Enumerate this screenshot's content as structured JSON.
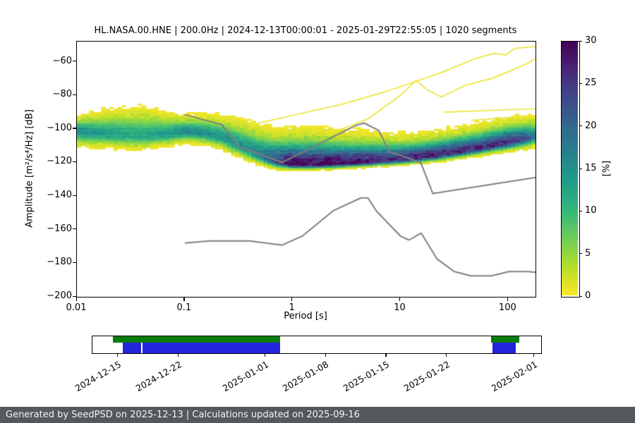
{
  "chart_data": {
    "type": "heatmap",
    "title": "HL.NASA.00.HNE | 200.0Hz | 2024-12-13T00:00:01 - 2025-01-29T22:55:05 | 1020 segments",
    "xlabel": "Period [s]",
    "ylabel": "Amplitude [m²/s⁴/Hz] [dB]",
    "x_scale": "log",
    "xlim": [
      0.01,
      179
    ],
    "ylim": [
      -200,
      -48
    ],
    "grid": false,
    "xticks": [
      {
        "value": 0.01,
        "label": "0.01"
      },
      {
        "value": 0.1,
        "label": "0.1"
      },
      {
        "value": 1,
        "label": "1"
      },
      {
        "value": 10,
        "label": "10"
      },
      {
        "value": 100,
        "label": "100"
      }
    ],
    "yticks": [
      {
        "value": -60,
        "label": "−60"
      },
      {
        "value": -80,
        "label": "−80"
      },
      {
        "value": -100,
        "label": "−100"
      },
      {
        "value": -120,
        "label": "−120"
      },
      {
        "value": -140,
        "label": "−140"
      },
      {
        "value": -160,
        "label": "−160"
      },
      {
        "value": -180,
        "label": "−180"
      },
      {
        "value": -200,
        "label": "−200"
      }
    ],
    "colorbar": {
      "label": "[%]",
      "min": 0,
      "max": 30,
      "ticks": [
        {
          "value": 0,
          "label": "0"
        },
        {
          "value": 5,
          "label": "5"
        },
        {
          "value": 10,
          "label": "10"
        },
        {
          "value": 15,
          "label": "15"
        },
        {
          "value": 20,
          "label": "20"
        },
        {
          "value": 25,
          "label": "25"
        },
        {
          "value": 30,
          "label": "30"
        }
      ],
      "colormap": "viridis_r",
      "viridis_stops": [
        "#440154",
        "#482878",
        "#3e4a89",
        "#31688e",
        "#26828e",
        "#1f9e89",
        "#35b779",
        "#6ece58",
        "#b5de2b",
        "#fde725"
      ]
    },
    "ppsd_histogram": {
      "period_bin_octaves": 0.125,
      "db_bin_width": 1,
      "columns": [
        {
          "period": 0.01,
          "mode_db": -101.0,
          "sigma_above": 3.5,
          "sigma_below": 4.0,
          "peak_pct": 16
        },
        {
          "period": 0.02,
          "mode_db": -103.0,
          "sigma_above": 6.0,
          "sigma_below": 3.5,
          "peak_pct": 13
        },
        {
          "period": 0.04,
          "mode_db": -104.0,
          "sigma_above": 7.0,
          "sigma_below": 3.5,
          "peak_pct": 12
        },
        {
          "period": 0.07,
          "mode_db": -103.0,
          "sigma_above": 5.0,
          "sigma_below": 3.0,
          "peak_pct": 14
        },
        {
          "period": 0.1,
          "mode_db": -101.5,
          "sigma_above": 4.0,
          "sigma_below": 2.8,
          "peak_pct": 16
        },
        {
          "period": 0.15,
          "mode_db": -102.5,
          "sigma_above": 4.5,
          "sigma_below": 2.8,
          "peak_pct": 15
        },
        {
          "period": 0.22,
          "mode_db": -105.0,
          "sigma_above": 5.5,
          "sigma_below": 3.0,
          "peak_pct": 14
        },
        {
          "period": 0.35,
          "mode_db": -111.0,
          "sigma_above": 6.5,
          "sigma_below": 3.0,
          "peak_pct": 15
        },
        {
          "period": 0.5,
          "mode_db": -116.0,
          "sigma_above": 7.0,
          "sigma_below": 2.2,
          "peak_pct": 18
        },
        {
          "period": 0.7,
          "mode_db": -119.5,
          "sigma_above": 7.5,
          "sigma_below": 1.8,
          "peak_pct": 24
        },
        {
          "period": 1.0,
          "mode_db": -121.0,
          "sigma_above": 8.0,
          "sigma_below": 1.4,
          "peak_pct": 30
        },
        {
          "period": 1.5,
          "mode_db": -121.2,
          "sigma_above": 8.0,
          "sigma_below": 1.3,
          "peak_pct": 30
        },
        {
          "period": 2.2,
          "mode_db": -120.8,
          "sigma_above": 7.5,
          "sigma_below": 1.3,
          "peak_pct": 30
        },
        {
          "period": 3.5,
          "mode_db": -120.2,
          "sigma_above": 7.0,
          "sigma_below": 1.3,
          "peak_pct": 29
        },
        {
          "period": 5,
          "mode_db": -119.6,
          "sigma_above": 6.5,
          "sigma_below": 1.3,
          "peak_pct": 28
        },
        {
          "period": 8,
          "mode_db": -118.8,
          "sigma_above": 6.0,
          "sigma_below": 1.3,
          "peak_pct": 27
        },
        {
          "period": 12,
          "mode_db": -117.8,
          "sigma_above": 5.5,
          "sigma_below": 1.4,
          "peak_pct": 27
        },
        {
          "period": 20,
          "mode_db": -116.2,
          "sigma_above": 5.5,
          "sigma_below": 1.5,
          "peak_pct": 27
        },
        {
          "period": 35,
          "mode_db": -113.8,
          "sigma_above": 5.5,
          "sigma_below": 1.6,
          "peak_pct": 27
        },
        {
          "period": 60,
          "mode_db": -111.0,
          "sigma_above": 5.5,
          "sigma_below": 1.8,
          "peak_pct": 27
        },
        {
          "period": 100,
          "mode_db": -108.0,
          "sigma_above": 5.5,
          "sigma_below": 2.2,
          "peak_pct": 26
        },
        {
          "period": 150,
          "mode_db": -105.5,
          "sigma_above": 5.0,
          "sigma_below": 2.5,
          "peak_pct": 22
        },
        {
          "period": 179,
          "mode_db": -104.5,
          "sigma_above": 5.0,
          "sigma_below": 2.5,
          "peak_pct": 16
        }
      ]
    },
    "outlier_traces": [
      [
        [
          0.45,
          -97
        ],
        [
          1,
          -92
        ],
        [
          3,
          -85
        ],
        [
          8,
          -77
        ],
        [
          15,
          -71
        ],
        [
          25,
          -66
        ],
        [
          50,
          -58
        ],
        [
          75,
          -55
        ],
        [
          95,
          -56
        ],
        [
          115,
          -52
        ],
        [
          179,
          -51
        ]
      ],
      [
        [
          2,
          -104
        ],
        [
          5,
          -94
        ],
        [
          10,
          -80
        ],
        [
          14,
          -71
        ],
        [
          18,
          -77
        ],
        [
          24,
          -81
        ],
        [
          40,
          -74
        ],
        [
          70,
          -70
        ],
        [
          100,
          -66
        ],
        [
          150,
          -61
        ],
        [
          179,
          -58
        ]
      ],
      [
        [
          25,
          -90
        ],
        [
          179,
          -88
        ]
      ],
      [
        [
          45,
          -95
        ],
        [
          179,
          -92
        ]
      ]
    ],
    "noise_models": {
      "color": "#7f7f7f",
      "nhnm": [
        [
          0.1,
          -91.5
        ],
        [
          0.22,
          -97.4
        ],
        [
          0.32,
          -110.5
        ],
        [
          0.8,
          -120.0
        ],
        [
          3.8,
          -98.1
        ],
        [
          4.6,
          -96.5
        ],
        [
          6.3,
          -101.0
        ],
        [
          7.9,
          -113.5
        ],
        [
          15.4,
          -120.0
        ],
        [
          20.0,
          -138.5
        ],
        [
          179,
          -128.9
        ]
      ],
      "nlnm": [
        [
          0.1,
          -168.0
        ],
        [
          0.17,
          -166.7
        ],
        [
          0.4,
          -166.7
        ],
        [
          0.8,
          -169.2
        ],
        [
          1.24,
          -163.7
        ],
        [
          2.4,
          -148.6
        ],
        [
          4.3,
          -141.1
        ],
        [
          5.0,
          -141.1
        ],
        [
          6.0,
          -149.0
        ],
        [
          10.0,
          -163.8
        ],
        [
          12.0,
          -166.2
        ],
        [
          15.6,
          -162.1
        ],
        [
          21.9,
          -177.5
        ],
        [
          31.6,
          -185.0
        ],
        [
          45.0,
          -187.5
        ],
        [
          70.0,
          -187.5
        ],
        [
          101.0,
          -185.0
        ],
        [
          154.0,
          -185.0
        ],
        [
          179,
          -185.4
        ]
      ]
    }
  },
  "timeline": {
    "green_color": "#0a7d0a",
    "blue_color": "#2424dd",
    "green_segments": [
      {
        "start": 0.045,
        "end": 0.418
      },
      {
        "start": 0.888,
        "end": 0.952
      }
    ],
    "blue_segments": [
      {
        "start": 0.068,
        "end": 0.108
      },
      {
        "start": 0.112,
        "end": 0.418
      },
      {
        "start": 0.891,
        "end": 0.9435
      }
    ],
    "ticks": [
      {
        "label": "2024-12-15",
        "pos": 0.056
      },
      {
        "label": "2024-12-22",
        "pos": 0.191
      },
      {
        "label": "2025-01-01",
        "pos": 0.384
      },
      {
        "label": "2025-01-08",
        "pos": 0.519
      },
      {
        "label": "2025-01-15",
        "pos": 0.654
      },
      {
        "label": "2025-01-22",
        "pos": 0.788
      },
      {
        "label": "2025-02-01",
        "pos": 0.983
      }
    ]
  },
  "footer": {
    "text": "Generated by SeedPSD on 2025-12-13 | Calculations updated on 2025-09-16",
    "background": "#55595b"
  }
}
